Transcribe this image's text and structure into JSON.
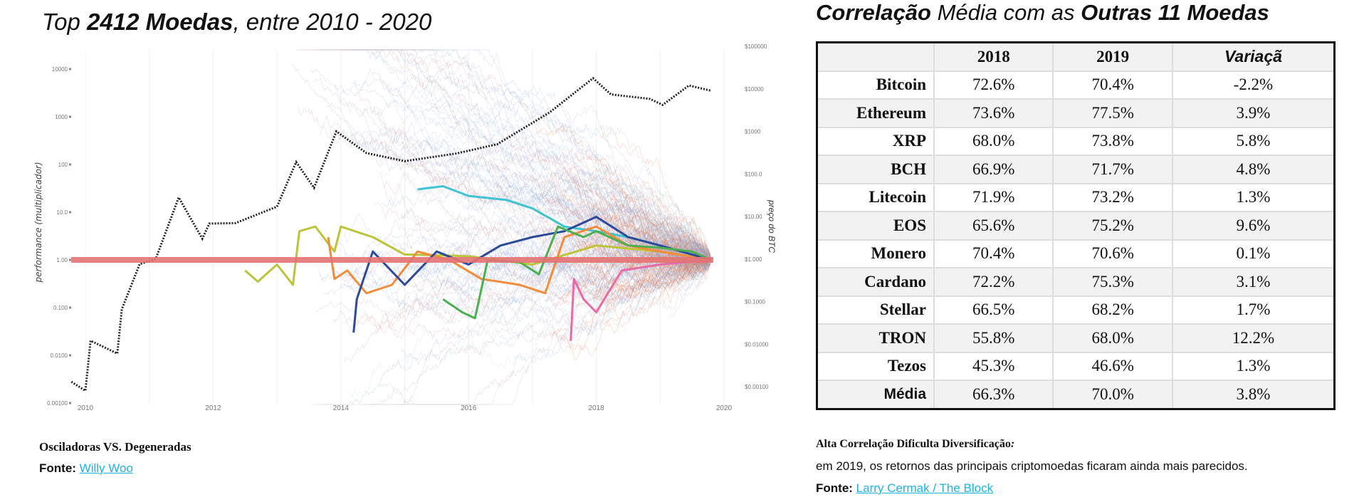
{
  "left_panel": {
    "title_prefix": "Top ",
    "title_bold": "2412 Moedas",
    "title_suffix": ", entre 2010 - 2020",
    "caption": "Osciladoras VS. Degeneradas",
    "source_label": "Fonte:",
    "source_link": "Willy Woo"
  },
  "right_panel": {
    "title_bold1": "Correlação",
    "title_mid": " Média com as ",
    "title_bold2": "Outras 11 Moedas",
    "table": {
      "headers": [
        "",
        "2018",
        "2019",
        "Variaçã"
      ],
      "rows": [
        {
          "name": "Bitcoin",
          "y2018": "72.6%",
          "y2019": "70.4%",
          "change": "-2.2%"
        },
        {
          "name": "Ethereum",
          "y2018": "73.6%",
          "y2019": "77.5%",
          "change": "3.9%"
        },
        {
          "name": "XRP",
          "y2018": "68.0%",
          "y2019": "73.8%",
          "change": "5.8%"
        },
        {
          "name": "BCH",
          "y2018": "66.9%",
          "y2019": "71.7%",
          "change": "4.8%"
        },
        {
          "name": "Litecoin",
          "y2018": "71.9%",
          "y2019": "73.2%",
          "change": "1.3%"
        },
        {
          "name": "EOS",
          "y2018": "65.6%",
          "y2019": "75.2%",
          "change": "9.6%"
        },
        {
          "name": "Monero",
          "y2018": "70.4%",
          "y2019": "70.6%",
          "change": "0.1%"
        },
        {
          "name": "Cardano",
          "y2018": "72.2%",
          "y2019": "75.3%",
          "change": "3.1%"
        },
        {
          "name": "Stellar",
          "y2018": "66.5%",
          "y2019": "68.2%",
          "change": "1.7%"
        },
        {
          "name": "TRON",
          "y2018": "55.8%",
          "y2019": "68.0%",
          "change": "12.2%"
        },
        {
          "name": "Tezos",
          "y2018": "45.3%",
          "y2019": "46.6%",
          "change": "1.3%"
        },
        {
          "name": "Média",
          "y2018": "66.3%",
          "y2019": "70.0%",
          "change": "3.8%"
        }
      ]
    },
    "caption_bold": "Alta Correlação Dificulta Diversificação",
    "caption_colon": ":",
    "caption_text": "em 2019, os retornos das principais criptomoedas ficaram ainda mais parecidos.",
    "source_label": "Fonte:",
    "source_link": "Larry Cermak / The Block"
  },
  "chart_data": {
    "type": "line",
    "title": "Top 2412 Moedas, entre 2010 - 2020",
    "ylabel": "performance (multiplicador)",
    "y2label": "preço do BTC",
    "xlim": [
      2010,
      2020
    ],
    "ylim_log": [
      0.001,
      10000
    ],
    "y2lim_log": [
      0.001,
      100000
    ],
    "x_ticks": [
      "2010",
      "2012",
      "2014",
      "2016",
      "2018",
      "2020"
    ],
    "y_ticks": [
      "0.00100",
      "0.0100",
      "0.100",
      "1.00",
      "10.0",
      "100",
      "1000",
      "10000"
    ],
    "y2_ticks": [
      "$0.00100",
      "$0.01000",
      "$0.1000",
      "$1.000",
      "$10.00",
      "$100.0",
      "$1000",
      "$10000",
      "$100000"
    ],
    "reference_line": {
      "value": 1,
      "color": "#e57373"
    },
    "btc_price": {
      "color": "#222222",
      "x": [
        2009.78,
        2010.0,
        2010.08,
        2010.5,
        2010.57,
        2010.85,
        2011.1,
        2011.46,
        2011.83,
        2011.94,
        2012.35,
        2013.0,
        2013.3,
        2013.58,
        2013.93,
        2014.4,
        2015.0,
        2015.8,
        2016.45,
        2017.27,
        2017.95,
        2018.23,
        2018.84,
        2019.04,
        2019.45,
        2019.8
      ],
      "y": [
        0.0013,
        0.0008,
        0.012,
        0.006,
        0.066,
        0.76,
        1,
        28,
        3,
        6.8,
        7,
        17,
        190,
        47,
        1000,
        310,
        200,
        300,
        500,
        2800,
        17800,
        7400,
        5800,
        4200,
        12000,
        9000
      ]
    },
    "highlighted_series": [
      {
        "name": "cyan",
        "color": "#3ec3d0",
        "x": [
          2015.2,
          2015.6,
          2016.0,
          2016.6,
          2017.0,
          2017.5,
          2018.0,
          2018.5,
          2019.0,
          2019.8
        ],
        "y": [
          30,
          35,
          22,
          18,
          12,
          5,
          4,
          3,
          2,
          1
        ]
      },
      {
        "name": "yellow-green",
        "color": "#bcc43a",
        "x": [
          2012.5,
          2012.7,
          2013.0,
          2013.25,
          2013.35,
          2013.6,
          2013.9,
          2014.0,
          2014.5,
          2015.0,
          2016.0,
          2017.0,
          2018.0,
          2019.0,
          2019.8
        ],
        "y": [
          0.6,
          0.35,
          0.8,
          0.3,
          4,
          5,
          1.5,
          5,
          3,
          1.3,
          1.2,
          0.8,
          2,
          1.5,
          1
        ]
      },
      {
        "name": "orange",
        "color": "#f28c3a",
        "x": [
          2013.8,
          2013.9,
          2014.1,
          2014.4,
          2014.8,
          2015.2,
          2015.7,
          2016.2,
          2016.8,
          2017.2,
          2017.5,
          2018.0,
          2018.5,
          2019.0,
          2019.8
        ],
        "y": [
          3,
          0.4,
          0.6,
          0.2,
          0.3,
          1.5,
          1,
          0.4,
          0.3,
          0.2,
          3,
          5,
          2,
          1.5,
          1
        ]
      },
      {
        "name": "dark-blue",
        "color": "#2c4a9a",
        "x": [
          2014.2,
          2014.25,
          2014.5,
          2015.0,
          2015.5,
          2016.0,
          2016.5,
          2017.0,
          2017.5,
          2018.0,
          2018.5,
          2019.0,
          2019.8
        ],
        "y": [
          0.03,
          0.15,
          1.5,
          0.3,
          1.5,
          0.8,
          2,
          3,
          4,
          8,
          3,
          2,
          1
        ]
      },
      {
        "name": "green",
        "color": "#4caf50",
        "x": [
          2015.6,
          2015.9,
          2016.1,
          2016.3,
          2016.8,
          2017.1,
          2017.4,
          2017.8,
          2018.0,
          2018.5,
          2019.0,
          2019.5,
          2019.8
        ],
        "y": [
          0.15,
          0.08,
          0.06,
          1,
          0.9,
          0.5,
          5,
          3,
          4,
          2,
          1.8,
          1.5,
          1
        ]
      },
      {
        "name": "pink",
        "color": "#e86aa8",
        "x": [
          2017.6,
          2017.65,
          2017.8,
          2018.0,
          2018.4,
          2019.0,
          2019.8
        ],
        "y": [
          0.02,
          0.4,
          0.15,
          0.08,
          0.6,
          0.8,
          1
        ]
      }
    ],
    "background_series": {
      "count": 2412,
      "drawn_sample": 260,
      "colors": [
        "#8fa6d6",
        "#f06a3c",
        "#9a9a9a",
        "#c6dcea",
        "#e0a8a8"
      ]
    }
  }
}
